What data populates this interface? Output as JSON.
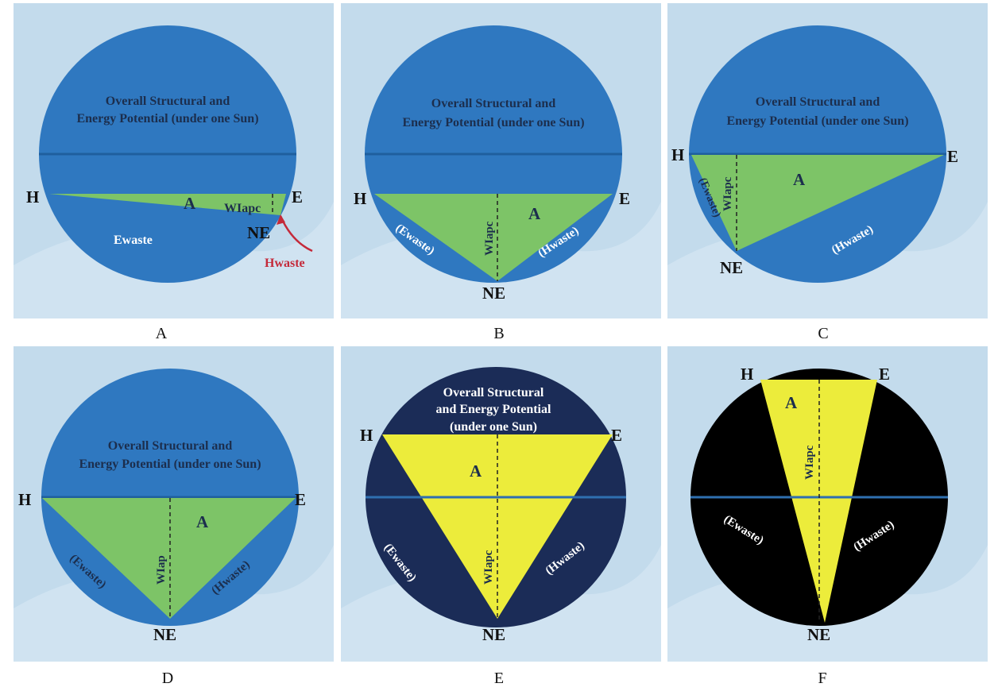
{
  "colors": {
    "background": "#c3dbec",
    "blue_circle": "#2f78c0",
    "green": "#7dc467",
    "navy_circle": "#1b2c57",
    "black_circle": "#000000",
    "yellow": "#ecec3b",
    "line": "#1f5f9e",
    "red_arrow": "#c42a3a"
  },
  "panels": {
    "a": {
      "label": "A",
      "title_lines": [
        "Overall Structural and",
        "Energy Potential (under one Sun)"
      ],
      "h": "H",
      "e": "E",
      "ne": "NE",
      "area": "A",
      "wlap": "WIapc",
      "ewaste": "Ewaste",
      "hwaste": "Hwaste"
    },
    "b": {
      "label": "B",
      "title_lines": [
        "Overall Structural and",
        "Energy Potential (under one Sun)"
      ],
      "h": "H",
      "e": "E",
      "ne": "NE",
      "area": "A",
      "wlap": "WIapc",
      "ewaste": "(Ewaste)",
      "hwaste": "(Hwaste)"
    },
    "c": {
      "label": "C",
      "title_lines": [
        "Overall Structural and",
        "Energy Potential (under one Sun)"
      ],
      "h": "H",
      "e": "E",
      "ne": "NE",
      "area": "A",
      "wlap": "WIapc",
      "ewaste": "(Ewaste)",
      "hwaste": "(Hwaste)"
    },
    "d": {
      "label": "D",
      "title_lines": [
        "Overall Structural and",
        "Energy Potential (under one Sun)"
      ],
      "h": "H",
      "e": "E",
      "ne": "NE",
      "area": "A",
      "wlap": "WIap",
      "ewaste": "(Ewaste)",
      "hwaste": "(Hwaste)"
    },
    "e": {
      "label": "E",
      "title_lines": [
        "Overall Structural",
        "and Energy Potential",
        "(under one Sun)"
      ],
      "h": "H",
      "e": "E",
      "ne": "NE",
      "area": "A",
      "wlap": "WIapc",
      "ewaste": "(Ewaste)",
      "hwaste": "(Hwaste)"
    },
    "f": {
      "label": "F",
      "h": "H",
      "e": "E",
      "ne": "NE",
      "area": "A",
      "wlap": "WIapc",
      "ewaste": "(Ewaste)",
      "hwaste": "(Hwaste)"
    }
  }
}
